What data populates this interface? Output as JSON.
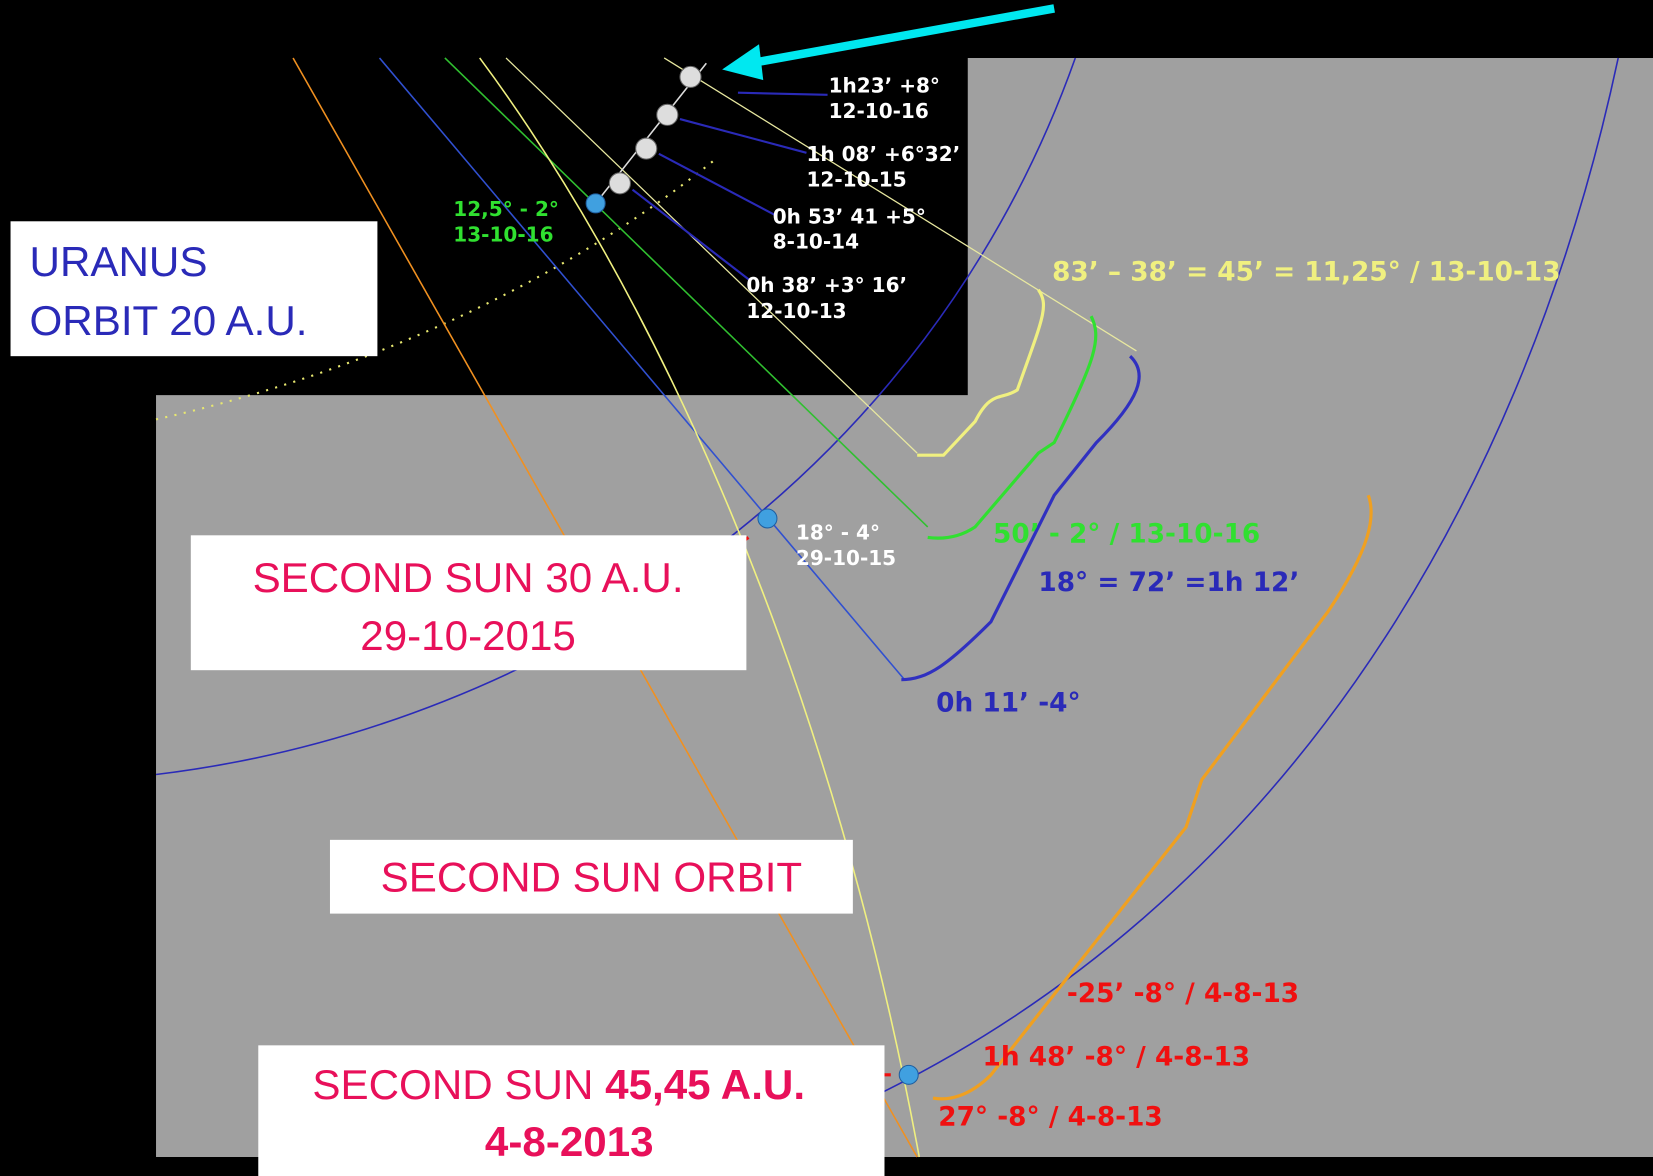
{
  "uranus": {
    "line1": "URANUS",
    "line2": "ORBIT 20 A.U."
  },
  "second_sun_30": {
    "line1": "SECOND SUN 30 A.U.",
    "line2": "29-10-2015"
  },
  "orbit_label": "SECOND SUN ORBIT",
  "second_sun_45": {
    "prefix": "SECOND SUN ",
    "distance": "45,45 A.U.",
    "date": "4-8-2013"
  },
  "positions": [
    {
      "coords": "1h23’ +8°",
      "date": "12-10-16"
    },
    {
      "coords": "1h 08’ +6°32’",
      "date": "12-10-15"
    },
    {
      "coords": "0h 53’ 41 +5°",
      "date": "8-10-14"
    },
    {
      "coords": "0h 38’ +3° 16’",
      "date": "12-10-13"
    }
  ],
  "sun_position": {
    "coords": "18° - 4°",
    "date": "29-10-15"
  },
  "green_position": {
    "coords": "12,5° - 2°",
    "date": "13-10-16"
  },
  "annotations": {
    "yellow": "83’ – 38’ = 45’ = 11,25°  / 13-10-13",
    "green": "50’ - 2° / 13-10-16",
    "blue1": "18° = 72’ =1h 12’",
    "blue2": "0h 11’  -4°",
    "red1": "-25’  -8° / 4-8-13",
    "red2": "1h 48’  -8° / 4-8-13",
    "red3": "27°  -8° / 4-8-13"
  }
}
